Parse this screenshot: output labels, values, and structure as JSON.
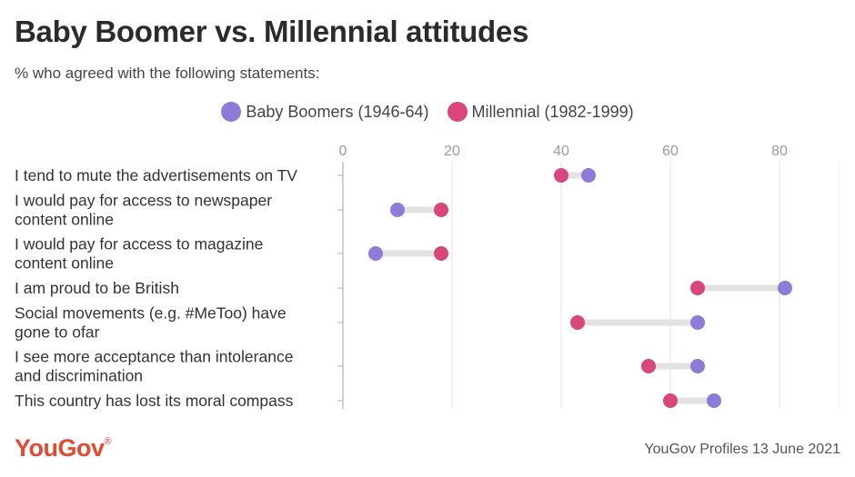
{
  "title": "Baby Boomer vs. Millennial attitudes",
  "subtitle": "% who agreed with the following statements:",
  "footer": {
    "logo": "YouGov",
    "logo_mark": "®",
    "source": "YouGov Profiles 13 June 2021"
  },
  "colors": {
    "boomers": "#8e7ad9",
    "millennials": "#d9467a",
    "connector": "#e2e2e2",
    "grid": "#e6e6e6"
  },
  "chart_data": {
    "type": "dumbbell",
    "title": "Baby Boomer vs. Millennial attitudes",
    "subtitle": "% who agreed with the following statements:",
    "xlim": [
      0,
      90
    ],
    "xticks": [
      0,
      20,
      40,
      60,
      80
    ],
    "legend_position": "top-center",
    "categories": [
      "I tend to mute the advertisements on TV",
      "I would pay for access to newspaper content online",
      "I would pay for access to magazine content online",
      "I am proud to be British",
      "Social movements (e.g. #MeToo) have gone to ofar",
      "I see more acceptance than intolerance and discrimination",
      "This country has lost its moral compass"
    ],
    "category_lines": [
      [
        "I tend to mute the advertisements on TV"
      ],
      [
        "I would pay for access to newspaper",
        "content online"
      ],
      [
        "I would pay for access to magazine",
        "content online"
      ],
      [
        "I am proud to be British"
      ],
      [
        "Social movements (e.g. #MeToo) have",
        "gone to ofar"
      ],
      [
        "I see more acceptance than intolerance",
        "and discrimination"
      ],
      [
        "This country has lost its moral compass"
      ]
    ],
    "series": [
      {
        "name": "Baby Boomers (1946-64)",
        "values": [
          45,
          10,
          6,
          81,
          65,
          65,
          68
        ]
      },
      {
        "name": "Millennial (1982-1999)",
        "values": [
          40,
          18,
          18,
          65,
          43,
          56,
          60
        ]
      }
    ]
  }
}
